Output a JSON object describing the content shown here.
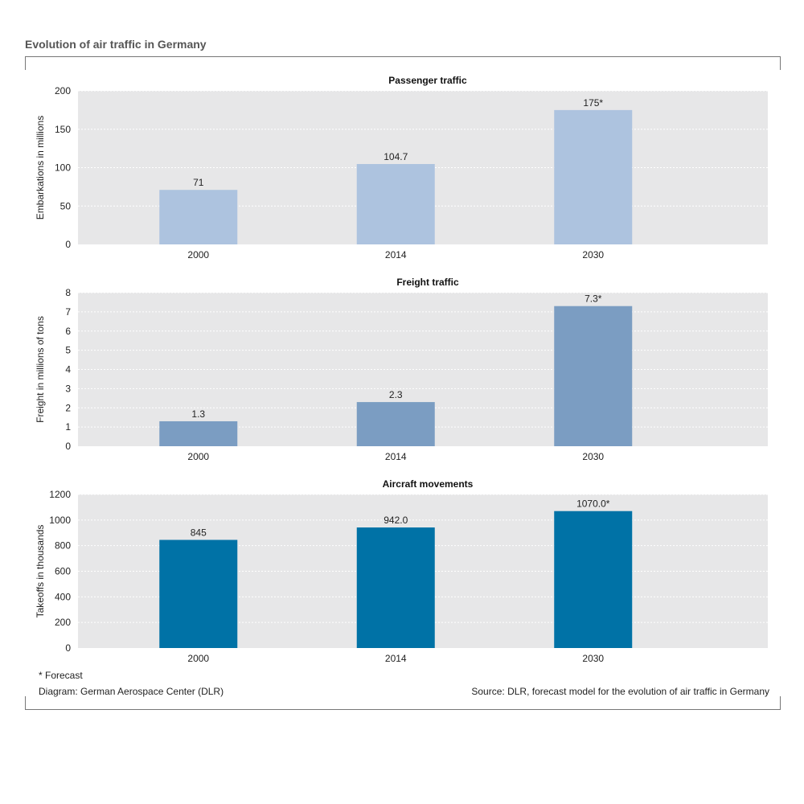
{
  "title": "Evolution of air traffic in Germany",
  "footnote": "* Forecast",
  "credit": "Diagram: German Aerospace Center (DLR)",
  "source": "Source: DLR, forecast model for the evolution of air traffic in Germany",
  "chart_data": [
    {
      "type": "bar",
      "title": "Passenger traffic",
      "ylabel": "Embarkations in millions",
      "categories": [
        "2000",
        "2014",
        "2030"
      ],
      "values": [
        71,
        104.7,
        175
      ],
      "data_labels": [
        "71",
        "104.7",
        "175*"
      ],
      "ylim": [
        0,
        200
      ],
      "yticks": [
        0,
        50,
        100,
        150,
        200
      ],
      "grid": true,
      "color": "#adc3df"
    },
    {
      "type": "bar",
      "title": "Freight traffic",
      "ylabel": "Freight in millions of tons",
      "categories": [
        "2000",
        "2014",
        "2030"
      ],
      "values": [
        1.3,
        2.3,
        7.3
      ],
      "data_labels": [
        "1.3",
        "2.3",
        "7.3*"
      ],
      "ylim": [
        0,
        8
      ],
      "yticks": [
        0,
        1,
        2,
        3,
        4,
        5,
        6,
        7,
        8
      ],
      "grid": true,
      "color": "#7b9dc2"
    },
    {
      "type": "bar",
      "title": "Aircraft movements",
      "ylabel": "Takeoffs in thousands",
      "categories": [
        "2000",
        "2014",
        "2030"
      ],
      "values": [
        845,
        942.0,
        1070.0
      ],
      "data_labels": [
        "845",
        "942.0",
        "1070.0*"
      ],
      "ylim": [
        0,
        1200
      ],
      "yticks": [
        0,
        200,
        400,
        600,
        800,
        1000,
        1200
      ],
      "grid": true,
      "color": "#0072a6"
    }
  ]
}
